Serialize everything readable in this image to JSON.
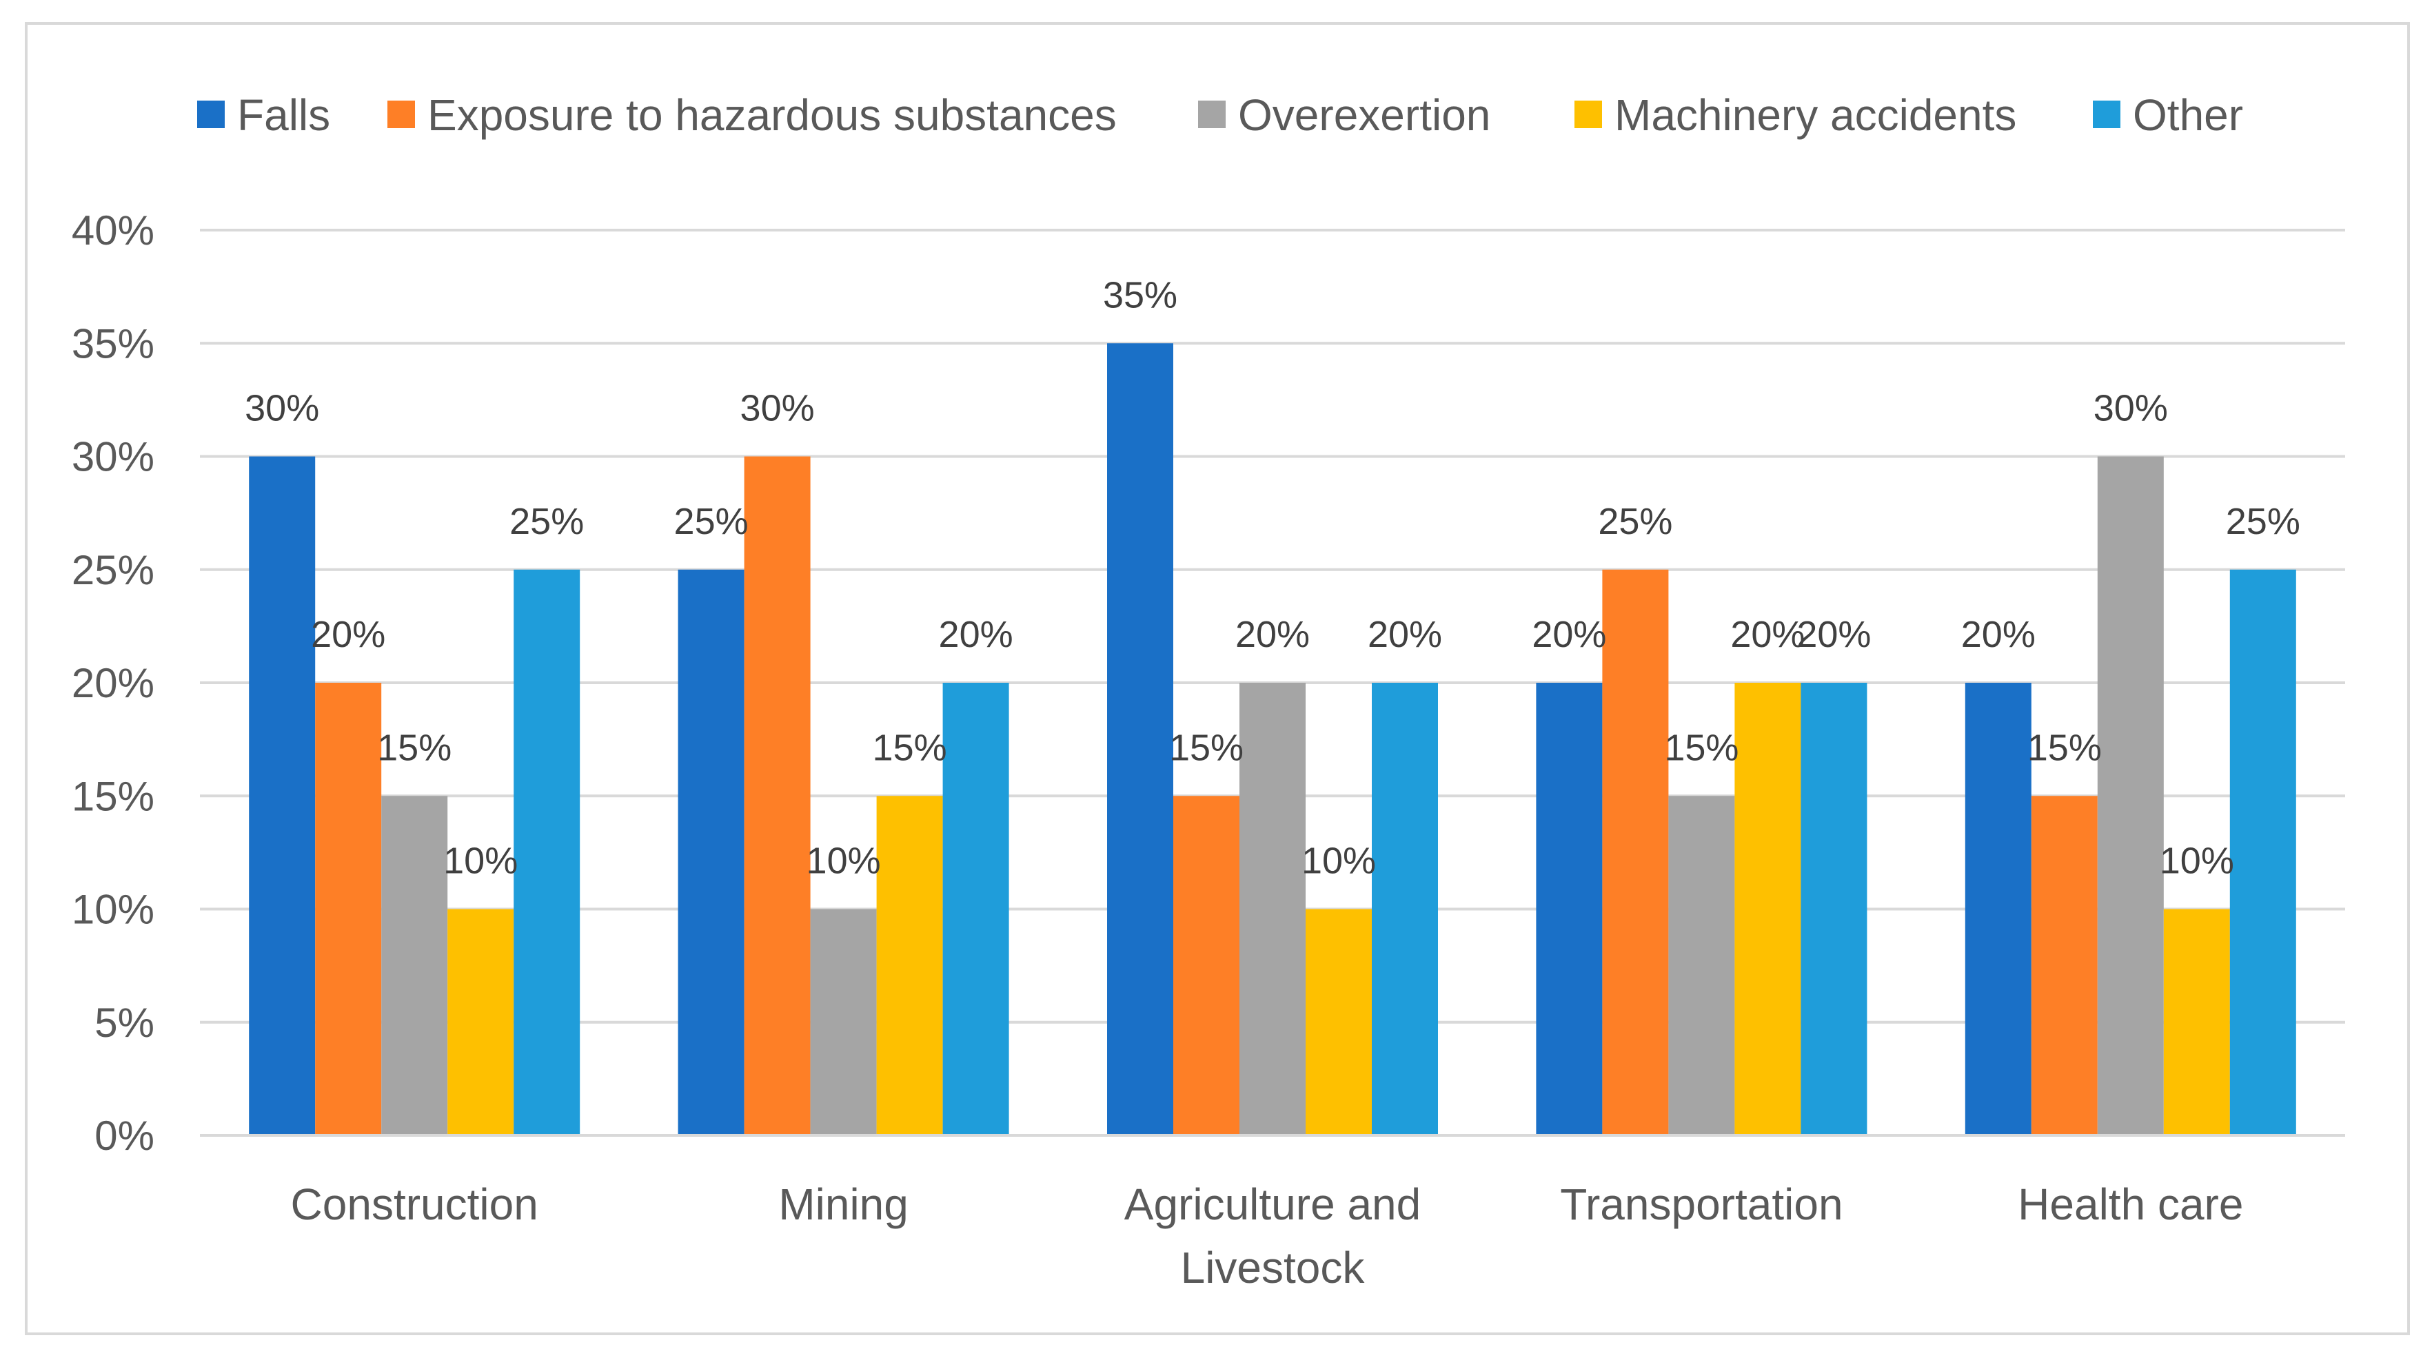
{
  "chart_data": {
    "type": "bar",
    "title": "",
    "xlabel": "",
    "ylabel": "",
    "ylim": [
      0,
      0.4
    ],
    "y_tick_step": 0.05,
    "y_ticks": [
      "0%",
      "5%",
      "10%",
      "15%",
      "20%",
      "25%",
      "30%",
      "35%",
      "40%"
    ],
    "grid": true,
    "legend_position": "top",
    "categories": [
      [
        "Construction"
      ],
      [
        "Mining"
      ],
      [
        "Agriculture and",
        "Livestock"
      ],
      [
        "Transportation"
      ],
      [
        "Health care"
      ]
    ],
    "series": [
      {
        "name": "Falls",
        "color": "#1a70c7",
        "values": [
          0.3,
          0.25,
          0.35,
          0.2,
          0.2
        ],
        "labels": [
          "30%",
          "25%",
          "35%",
          "20%",
          "20%"
        ]
      },
      {
        "name": "Exposure to hazardous substances",
        "color": "#fe7f26",
        "values": [
          0.2,
          0.3,
          0.15,
          0.25,
          0.15
        ],
        "labels": [
          "20%",
          "30%",
          "15%",
          "25%",
          "15%"
        ]
      },
      {
        "name": "Overexertion",
        "color": "#a5a5a5",
        "values": [
          0.15,
          0.1,
          0.2,
          0.15,
          0.3
        ],
        "labels": [
          "15%",
          "10%",
          "20%",
          "15%",
          "30%"
        ]
      },
      {
        "name": "Machinery accidents",
        "color": "#fec000",
        "values": [
          0.1,
          0.15,
          0.1,
          0.2,
          0.1
        ],
        "labels": [
          "10%",
          "15%",
          "10%",
          "20%",
          "10%"
        ]
      },
      {
        "name": "Other",
        "color": "#1f9dda",
        "values": [
          0.25,
          0.2,
          0.2,
          0.2,
          0.25
        ],
        "labels": [
          "25%",
          "20%",
          "20%",
          "20%",
          "25%"
        ]
      }
    ]
  }
}
